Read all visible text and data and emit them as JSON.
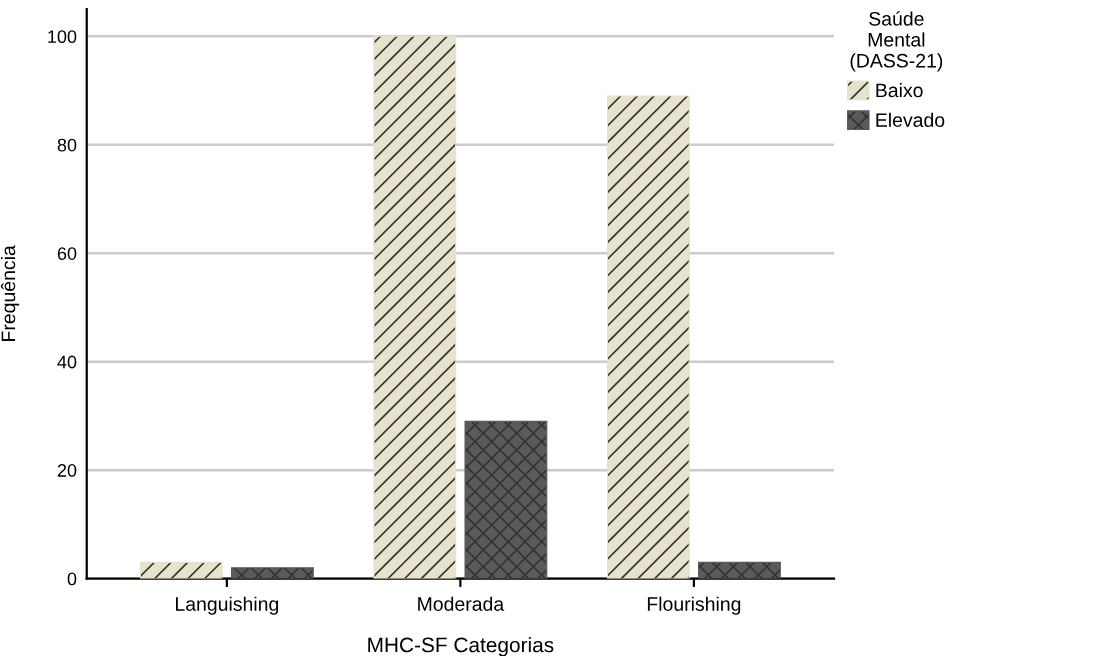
{
  "chart_data": {
    "type": "bar",
    "xlabel": "MHC-SF Categorias",
    "ylabel": "Frequência",
    "legend_title": "Saúde\nMental\n(DASS-21)",
    "categories": [
      "Languishing",
      "Moderada",
      "Flourishing"
    ],
    "series": [
      {
        "name": "Baixo",
        "color": "#e6e2cc",
        "values": [
          3,
          100,
          89
        ]
      },
      {
        "name": "Elevado",
        "color": "#5a5a5a",
        "values": [
          2,
          29,
          3
        ]
      }
    ],
    "ylim": [
      0,
      105
    ],
    "yticks": [
      0,
      20,
      40,
      60,
      80,
      100
    ],
    "grid": "y",
    "legend": "top right"
  }
}
